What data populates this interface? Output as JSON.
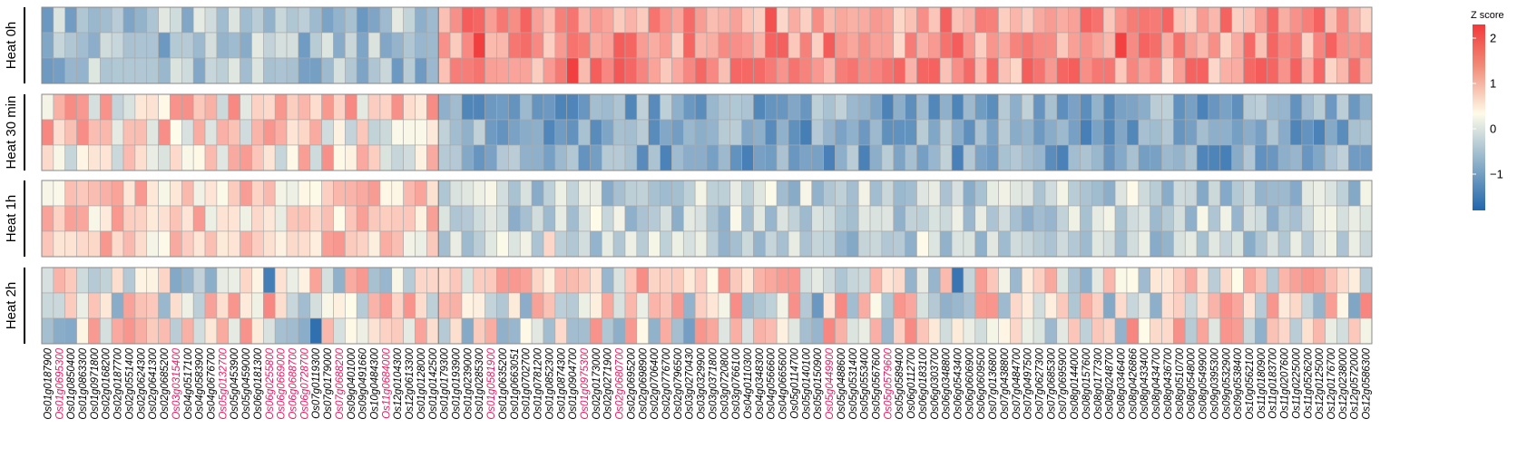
{
  "chart_data": {
    "type": "heatmap",
    "title": "",
    "legend": {
      "title": "Z score",
      "ticks": [
        2,
        1,
        0,
        -1
      ],
      "tick_labels": [
        "2",
        "1",
        "0",
        "−1"
      ],
      "range": [
        -1.8,
        2.3
      ],
      "colors": {
        "low": "#2166ac",
        "mid": "#fefbe9",
        "high": "#f2393a"
      }
    },
    "highlight_color": "#e8175d",
    "panels": [
      {
        "name": "Heat 0h",
        "profile": "high-left-low"
      },
      {
        "name": "Heat 30 min",
        "profile": "left-mixed-right-low"
      },
      {
        "name": "Heat 1h",
        "profile": "left-warm-right-cool"
      },
      {
        "name": "Heat 2h",
        "profile": "mixed"
      }
    ],
    "rows_per_panel": 3,
    "group_split_index": 34,
    "genes": [
      "Os01g0187900",
      "Os01g0695300",
      "Os01g0850400",
      "Os01g0863300",
      "Os01g0971800",
      "Os02g0168200",
      "Os02g0187700",
      "Os02g0551400",
      "Os02g0624300",
      "Os02g0641300",
      "Os02g0685200",
      "Os03g0315400",
      "Os04g0517100",
      "Os04g0583900",
      "Os04g0676700",
      "Os05g0132700",
      "Os05g0453900",
      "Os05g0459000",
      "Os06g0181300",
      "Os06g0255800",
      "Os06g0669000",
      "Os06g0688700",
      "Os06g0728700",
      "Os07g0119300",
      "Os07g0179000",
      "Os07g0688200",
      "Os09g0401000",
      "Os09g0491660",
      "Os10g0484300",
      "Os11g0684000",
      "Os12g0104300",
      "Os12g0613300",
      "Os01g0128000",
      "Os01g0142500",
      "Os01g0179300",
      "Os01g0193900",
      "Os01g0239000",
      "Os01g0285300",
      "Os01g0581900",
      "Os01g0635200",
      "Os01g0663051",
      "Os01g0702700",
      "Os01g0781200",
      "Os01g0852300",
      "Os01g0874300",
      "Os01g0904700",
      "Os01g0975300",
      "Os02g0173000",
      "Os02g0271900",
      "Os02g0680700",
      "Os02g0695200",
      "Os02g0698900",
      "Os02g0706400",
      "Os02g0776700",
      "Os02g0796500",
      "Os03g0270430",
      "Os03g0329900",
      "Os03g0371800",
      "Os03g0720800",
      "Os03g0766100",
      "Os04g0110300",
      "Os04g0348300",
      "Os04g0566600",
      "Os04g0665600",
      "Os05g0114700",
      "Os05g0140100",
      "Os05g0150900",
      "Os05g0449900",
      "Os05g0488600",
      "Os05g0531400",
      "Os05g0553400",
      "Os05g0567600",
      "Os05g0579600",
      "Os05g0589400",
      "Os06g0112700",
      "Os06g0183100",
      "Os06g0303700",
      "Os06g0348800",
      "Os06g0543400",
      "Os06g0606900",
      "Os06g0609500",
      "Os07g0136800",
      "Os07g0438800",
      "Os07g0484700",
      "Os07g0497500",
      "Os07g0627300",
      "Os07g0685300",
      "Os07g0695900",
      "Os08g0144000",
      "Os08g0157600",
      "Os08g0177300",
      "Os08g0248700",
      "Os08g0346400",
      "Os08g0426866",
      "Os08g0433400",
      "Os08g0434700",
      "Os08g0436700",
      "Os08g0510700",
      "Os08g0548000",
      "Os08g0549900",
      "Os09g0395300",
      "Os09g0532900",
      "Os09g0538400",
      "Os10g0562100",
      "Os11g0180900",
      "Os11g0183700",
      "Os11g0207600",
      "Os11g0225000",
      "Os11g0526200",
      "Os12g0125000",
      "Os12g0176700",
      "Os12g0238000",
      "Os12g0572000",
      "Os12g0586300"
    ],
    "highlighted_genes": [
      "Os01g0695300",
      "Os03g0315400",
      "Os05g0132700",
      "Os06g0255800",
      "Os06g0669000",
      "Os06g0688700",
      "Os06g0728700",
      "Os07g0688200",
      "Os11g0684000",
      "Os01g0581900",
      "Os01g0975300",
      "Os02g0680700",
      "Os05g0449900",
      "Os05g0579600"
    ]
  }
}
